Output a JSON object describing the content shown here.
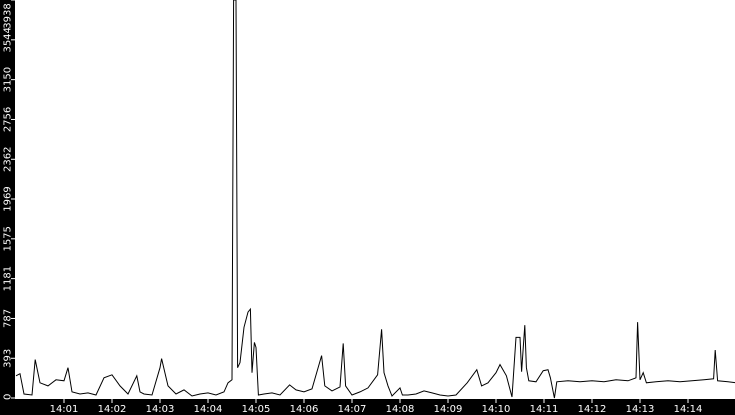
{
  "chart_data": {
    "type": "line",
    "title": "",
    "xlabel": "",
    "ylabel": "",
    "ylim": [
      0,
      3938
    ],
    "xlim": [
      "14:00:00",
      "14:15:00"
    ],
    "grid": false,
    "y_ticks": [
      "0",
      "393",
      "787",
      "1181",
      "1575",
      "1969",
      "2362",
      "2756",
      "3150",
      "3544",
      "3938"
    ],
    "x_ticks": [
      "14:01",
      "14:02",
      "14:03",
      "14:04",
      "14:05",
      "14:06",
      "14:07",
      "14:08",
      "14:09",
      "14:10",
      "14:11",
      "14:12",
      "14:13",
      "14:14"
    ],
    "colors": {
      "line": "#000000",
      "axis_bar": "#000000",
      "axis_text": "#ffffff",
      "background": "#ffffff"
    },
    "series": [
      {
        "points": [
          [
            "14:00:00",
            220
          ],
          [
            "14:00:05",
            240
          ],
          [
            "14:00:10",
            40
          ],
          [
            "14:00:20",
            30
          ],
          [
            "14:00:24",
            380
          ],
          [
            "14:00:30",
            150
          ],
          [
            "14:00:40",
            120
          ],
          [
            "14:00:50",
            180
          ],
          [
            "14:01:00",
            170
          ],
          [
            "14:01:05",
            300
          ],
          [
            "14:01:10",
            60
          ],
          [
            "14:01:20",
            40
          ],
          [
            "14:01:30",
            50
          ],
          [
            "14:01:40",
            30
          ],
          [
            "14:01:50",
            200
          ],
          [
            "14:02:00",
            230
          ],
          [
            "14:02:10",
            120
          ],
          [
            "14:02:20",
            40
          ],
          [
            "14:02:31",
            220
          ],
          [
            "14:02:35",
            60
          ],
          [
            "14:02:40",
            40
          ],
          [
            "14:02:50",
            30
          ],
          [
            "14:03:00",
            300
          ],
          [
            "14:03:02",
            390
          ],
          [
            "14:03:10",
            120
          ],
          [
            "14:03:20",
            40
          ],
          [
            "14:03:30",
            80
          ],
          [
            "14:03:40",
            20
          ],
          [
            "14:03:50",
            40
          ],
          [
            "14:04:00",
            50
          ],
          [
            "14:04:10",
            30
          ],
          [
            "14:04:20",
            60
          ],
          [
            "14:04:25",
            150
          ],
          [
            "14:04:30",
            180
          ],
          [
            "14:04:32",
            3938
          ],
          [
            "14:04:35",
            3938
          ],
          [
            "14:04:37",
            300
          ],
          [
            "14:04:40",
            350
          ],
          [
            "14:04:45",
            700
          ],
          [
            "14:04:50",
            850
          ],
          [
            "14:04:53",
            880
          ],
          [
            "14:04:55",
            250
          ],
          [
            "14:04:58",
            550
          ],
          [
            "14:05:00",
            500
          ],
          [
            "14:05:03",
            30
          ],
          [
            "14:05:10",
            40
          ],
          [
            "14:05:20",
            50
          ],
          [
            "14:05:30",
            30
          ],
          [
            "14:05:42",
            130
          ],
          [
            "14:05:50",
            80
          ],
          [
            "14:06:00",
            60
          ],
          [
            "14:06:10",
            90
          ],
          [
            "14:06:22",
            420
          ],
          [
            "14:06:26",
            120
          ],
          [
            "14:06:35",
            70
          ],
          [
            "14:06:45",
            110
          ],
          [
            "14:06:49",
            540
          ],
          [
            "14:06:52",
            120
          ],
          [
            "14:07:00",
            30
          ],
          [
            "14:07:10",
            60
          ],
          [
            "14:07:20",
            100
          ],
          [
            "14:07:32",
            230
          ],
          [
            "14:07:37",
            680
          ],
          [
            "14:07:40",
            250
          ],
          [
            "14:07:45",
            120
          ],
          [
            "14:07:50",
            20
          ],
          [
            "14:08:00",
            100
          ],
          [
            "14:08:03",
            30
          ],
          [
            "14:08:10",
            30
          ],
          [
            "14:08:20",
            40
          ],
          [
            "14:08:30",
            70
          ],
          [
            "14:08:40",
            50
          ],
          [
            "14:08:50",
            30
          ],
          [
            "14:09:00",
            20
          ],
          [
            "14:09:10",
            30
          ],
          [
            "14:09:24",
            150
          ],
          [
            "14:09:36",
            280
          ],
          [
            "14:09:42",
            120
          ],
          [
            "14:09:50",
            150
          ],
          [
            "14:10:00",
            250
          ],
          [
            "14:10:05",
            330
          ],
          [
            "14:10:13",
            220
          ],
          [
            "14:10:20",
            10
          ],
          [
            "14:10:25",
            600
          ],
          [
            "14:10:30",
            600
          ],
          [
            "14:10:32",
            260
          ],
          [
            "14:10:36",
            720
          ],
          [
            "14:10:38",
            300
          ],
          [
            "14:10:41",
            170
          ],
          [
            "14:10:50",
            160
          ],
          [
            "14:10:59",
            270
          ],
          [
            "14:11:05",
            280
          ],
          [
            "14:11:08",
            200
          ],
          [
            "14:11:13",
            0
          ],
          [
            "14:11:16",
            160
          ],
          [
            "14:11:30",
            170
          ],
          [
            "14:11:45",
            160
          ],
          [
            "14:12:00",
            170
          ],
          [
            "14:12:15",
            160
          ],
          [
            "14:12:30",
            180
          ],
          [
            "14:12:45",
            170
          ],
          [
            "14:12:55",
            200
          ],
          [
            "14:12:57",
            750
          ],
          [
            "14:13:00",
            180
          ],
          [
            "14:13:04",
            250
          ],
          [
            "14:13:08",
            150
          ],
          [
            "14:13:20",
            160
          ],
          [
            "14:13:35",
            170
          ],
          [
            "14:13:50",
            160
          ],
          [
            "14:14:05",
            170
          ],
          [
            "14:14:20",
            180
          ],
          [
            "14:14:32",
            190
          ],
          [
            "14:14:34",
            475
          ],
          [
            "14:14:37",
            170
          ],
          [
            "14:14:50",
            160
          ],
          [
            "14:15:00",
            150
          ]
        ]
      }
    ]
  }
}
